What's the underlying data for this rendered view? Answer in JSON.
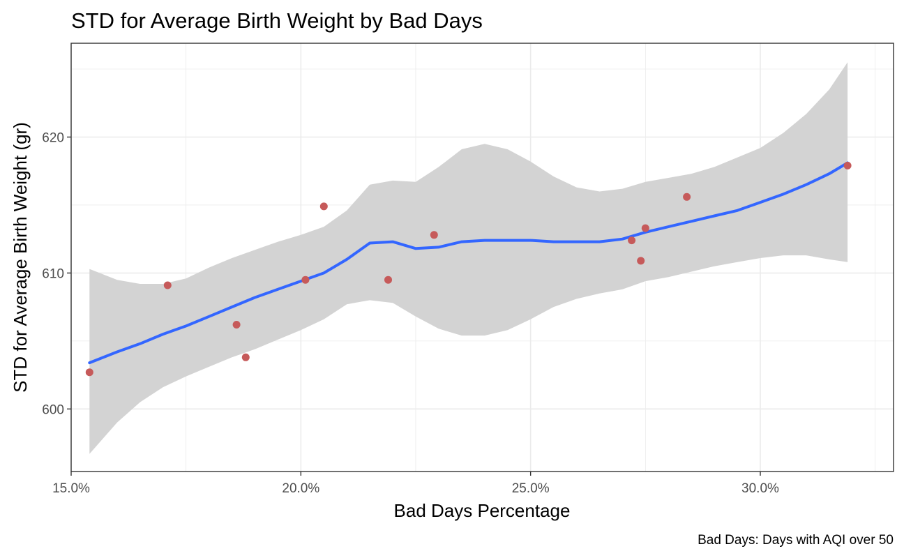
{
  "chart_data": {
    "type": "scatter",
    "title": "STD for Average Birth Weight by Bad Days",
    "xlabel": "Bad Days Percentage",
    "ylabel": "STD for Average Birth Weight (gr)",
    "caption": "Bad Days: Days with AQI over 50",
    "xlim": [
      15.0,
      32.9
    ],
    "ylim": [
      595.4,
      626.9
    ],
    "x_ticks": [
      15.0,
      20.0,
      25.0,
      30.0
    ],
    "x_tick_labels": [
      "15.0%",
      "20.0%",
      "25.0%",
      "30.0%"
    ],
    "y_ticks": [
      600,
      610,
      620
    ],
    "y_tick_labels": [
      "600",
      "610",
      "620"
    ],
    "grid": true,
    "colors": {
      "points": "#c65a5a",
      "smooth_line": "#3366ff",
      "confidence_band": "#d3d3d3",
      "grid": "#ebebeb",
      "panel_border": "#333333"
    },
    "series": [
      {
        "points": [
          {
            "x": 15.4,
            "y": 602.7
          },
          {
            "x": 17.1,
            "y": 609.1
          },
          {
            "x": 18.6,
            "y": 606.2
          },
          {
            "x": 18.8,
            "y": 603.8
          },
          {
            "x": 20.1,
            "y": 609.5
          },
          {
            "x": 20.5,
            "y": 614.9
          },
          {
            "x": 21.9,
            "y": 609.5
          },
          {
            "x": 22.9,
            "y": 612.8
          },
          {
            "x": 27.2,
            "y": 612.4
          },
          {
            "x": 27.4,
            "y": 610.9
          },
          {
            "x": 27.5,
            "y": 613.3
          },
          {
            "x": 28.4,
            "y": 615.6
          },
          {
            "x": 31.9,
            "y": 617.9
          }
        ]
      }
    ],
    "smooth": [
      {
        "x": 15.4,
        "y": 603.4,
        "lo": 596.7,
        "hi": 610.3
      },
      {
        "x": 16.0,
        "y": 604.2,
        "lo": 599.0,
        "hi": 609.5
      },
      {
        "x": 16.5,
        "y": 604.8,
        "lo": 600.5,
        "hi": 609.2
      },
      {
        "x": 17.0,
        "y": 605.5,
        "lo": 601.6,
        "hi": 609.2
      },
      {
        "x": 17.5,
        "y": 606.1,
        "lo": 602.4,
        "hi": 609.6
      },
      {
        "x": 18.0,
        "y": 606.8,
        "lo": 603.1,
        "hi": 610.4
      },
      {
        "x": 18.5,
        "y": 607.5,
        "lo": 603.8,
        "hi": 611.1
      },
      {
        "x": 19.0,
        "y": 608.2,
        "lo": 604.4,
        "hi": 611.7
      },
      {
        "x": 19.5,
        "y": 608.8,
        "lo": 605.1,
        "hi": 612.3
      },
      {
        "x": 20.0,
        "y": 609.4,
        "lo": 605.8,
        "hi": 612.8
      },
      {
        "x": 20.5,
        "y": 610.0,
        "lo": 606.6,
        "hi": 613.4
      },
      {
        "x": 21.0,
        "y": 611.0,
        "lo": 607.7,
        "hi": 614.6
      },
      {
        "x": 21.5,
        "y": 612.2,
        "lo": 608.0,
        "hi": 616.5
      },
      {
        "x": 22.0,
        "y": 612.3,
        "lo": 607.8,
        "hi": 616.8
      },
      {
        "x": 22.5,
        "y": 611.8,
        "lo": 606.8,
        "hi": 616.7
      },
      {
        "x": 23.0,
        "y": 611.9,
        "lo": 605.9,
        "hi": 617.8
      },
      {
        "x": 23.5,
        "y": 612.3,
        "lo": 605.4,
        "hi": 619.1
      },
      {
        "x": 24.0,
        "y": 612.4,
        "lo": 605.4,
        "hi": 619.5
      },
      {
        "x": 24.5,
        "y": 612.4,
        "lo": 605.8,
        "hi": 619.1
      },
      {
        "x": 25.0,
        "y": 612.4,
        "lo": 606.6,
        "hi": 618.2
      },
      {
        "x": 25.5,
        "y": 612.3,
        "lo": 607.5,
        "hi": 617.1
      },
      {
        "x": 26.0,
        "y": 612.3,
        "lo": 608.1,
        "hi": 616.3
      },
      {
        "x": 26.5,
        "y": 612.3,
        "lo": 608.5,
        "hi": 616.0
      },
      {
        "x": 27.0,
        "y": 612.5,
        "lo": 608.8,
        "hi": 616.2
      },
      {
        "x": 27.5,
        "y": 613.0,
        "lo": 609.4,
        "hi": 616.7
      },
      {
        "x": 28.0,
        "y": 613.4,
        "lo": 609.7,
        "hi": 617.0
      },
      {
        "x": 28.5,
        "y": 613.8,
        "lo": 610.1,
        "hi": 617.3
      },
      {
        "x": 29.0,
        "y": 614.2,
        "lo": 610.5,
        "hi": 617.8
      },
      {
        "x": 29.5,
        "y": 614.6,
        "lo": 610.8,
        "hi": 618.5
      },
      {
        "x": 30.0,
        "y": 615.2,
        "lo": 611.1,
        "hi": 619.2
      },
      {
        "x": 30.5,
        "y": 615.8,
        "lo": 611.3,
        "hi": 620.3
      },
      {
        "x": 31.0,
        "y": 616.5,
        "lo": 611.3,
        "hi": 621.7
      },
      {
        "x": 31.5,
        "y": 617.3,
        "lo": 611.0,
        "hi": 623.5
      },
      {
        "x": 31.9,
        "y": 618.1,
        "lo": 610.8,
        "hi": 625.5
      }
    ]
  }
}
